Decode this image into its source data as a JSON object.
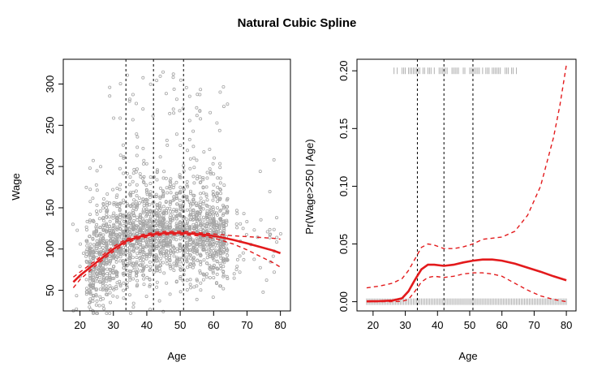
{
  "title": "Natural Cubic Spline",
  "colors": {
    "points": "#a6a6a6",
    "fit": "#e31a1c",
    "rug": "#b0b0b0",
    "knot": "#000000"
  },
  "chart_data": [
    {
      "type": "scatter",
      "panel": "left",
      "xlabel": "Age",
      "ylabel": "Wage",
      "xlim": [
        15,
        83
      ],
      "ylim": [
        25,
        330
      ],
      "x_ticks": [
        20,
        30,
        40,
        50,
        60,
        70,
        80
      ],
      "y_ticks": [
        50,
        100,
        150,
        200,
        250,
        300
      ],
      "knots": [
        33.75,
        42,
        51
      ],
      "points_summary": "approx 3000 scatter points of wage vs age (grey circles), dense band 60-160, high-earner cluster 250-320",
      "fit": {
        "x": [
          18,
          20,
          25,
          30,
          34,
          38,
          42,
          46,
          50,
          54,
          58,
          62,
          66,
          70,
          74,
          78,
          80
        ],
        "y": [
          60,
          68,
          84,
          100,
          110,
          115,
          118,
          119.5,
          119.5,
          118.5,
          117,
          114.5,
          111,
          107,
          102.5,
          98,
          95
        ]
      },
      "upper": {
        "x": [
          18,
          20,
          25,
          30,
          34,
          38,
          42,
          46,
          50,
          54,
          58,
          62,
          66,
          70,
          74,
          78,
          80
        ],
        "y": [
          66,
          72,
          87,
          103,
          112.5,
          117,
          120,
          121.5,
          121.5,
          120.5,
          119,
          117.5,
          116,
          115,
          114,
          113,
          112
        ]
      },
      "lower": {
        "x": [
          18,
          20,
          25,
          30,
          34,
          38,
          42,
          46,
          50,
          54,
          58,
          62,
          66,
          70,
          74,
          78,
          80
        ],
        "y": [
          53,
          63,
          81,
          97,
          107.5,
          113,
          116,
          117.5,
          117.5,
          116.5,
          115,
          111,
          106,
          99,
          91,
          83,
          78
        ]
      }
    },
    {
      "type": "line",
      "panel": "right",
      "xlabel": "Age",
      "ylabel": "Pr(Wage>250 | Age)",
      "xlim": [
        15,
        83
      ],
      "ylim": [
        -0.008,
        0.21
      ],
      "x_ticks": [
        20,
        30,
        40,
        50,
        60,
        70,
        80
      ],
      "y_ticks": [
        0.0,
        0.05,
        0.1,
        0.15,
        0.2
      ],
      "y_tick_labels": [
        "0.00",
        "0.05",
        "0.10",
        "0.15",
        "0.20"
      ],
      "knots": [
        33.75,
        42,
        51
      ],
      "rug_top_range": [
        26,
        65
      ],
      "rug_bottom_range": [
        18,
        80
      ],
      "rug_top_y": 0.2,
      "rug_bottom_y": 0.0,
      "fit": {
        "x": [
          18,
          22,
          26,
          29,
          31,
          33,
          35,
          37,
          39,
          42,
          45,
          48,
          51,
          54,
          57,
          60,
          64,
          68,
          72,
          76,
          80
        ],
        "y": [
          0.0003,
          0.0005,
          0.001,
          0.003,
          0.009,
          0.019,
          0.028,
          0.032,
          0.032,
          0.031,
          0.032,
          0.034,
          0.0355,
          0.0365,
          0.0365,
          0.0355,
          0.033,
          0.0295,
          0.026,
          0.022,
          0.0185
        ]
      },
      "upper": {
        "x": [
          18,
          22,
          26,
          29,
          31,
          33,
          35,
          37,
          39,
          42,
          45,
          48,
          51,
          54,
          57,
          60,
          64,
          68,
          72,
          76,
          78,
          80
        ],
        "y": [
          0.012,
          0.0135,
          0.016,
          0.02,
          0.027,
          0.037,
          0.047,
          0.05,
          0.049,
          0.046,
          0.046,
          0.0475,
          0.05,
          0.054,
          0.055,
          0.056,
          0.061,
          0.075,
          0.1,
          0.142,
          0.17,
          0.205
        ]
      },
      "lower": {
        "x": [
          18,
          22,
          26,
          29,
          31,
          33,
          35,
          37,
          39,
          42,
          45,
          48,
          51,
          54,
          57,
          60,
          64,
          68,
          72,
          76,
          80
        ],
        "y": [
          0.0,
          0.0,
          0.0,
          0.0003,
          0.002,
          0.009,
          0.017,
          0.021,
          0.022,
          0.021,
          0.022,
          0.024,
          0.025,
          0.025,
          0.024,
          0.022,
          0.016,
          0.01,
          0.005,
          0.002,
          0.0
        ]
      }
    }
  ]
}
